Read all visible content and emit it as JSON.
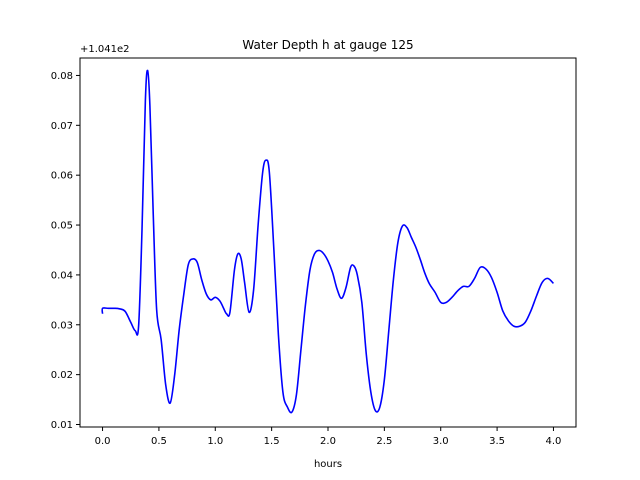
{
  "chart_data": {
    "type": "line",
    "title": "Water Depth h at gauge 125",
    "xlabel": "hours",
    "ylabel": "",
    "y_offset_label": "+1.041e2",
    "xlim": [
      -0.2,
      4.2
    ],
    "ylim": [
      0.0095,
      0.0835
    ],
    "x_ticks": [
      0.0,
      0.5,
      1.0,
      1.5,
      2.0,
      2.5,
      3.0,
      3.5,
      4.0
    ],
    "x_tick_labels": [
      "0.0",
      "0.5",
      "1.0",
      "1.5",
      "2.0",
      "2.5",
      "3.0",
      "3.5",
      "4.0"
    ],
    "y_ticks": [
      0.01,
      0.02,
      0.03,
      0.04,
      0.05,
      0.06,
      0.07,
      0.08
    ],
    "y_tick_labels": [
      "0.01",
      "0.02",
      "0.03",
      "0.04",
      "0.05",
      "0.06",
      "0.07",
      "0.08"
    ],
    "grid": false,
    "colors": {
      "series": "#0000ff"
    },
    "series": [
      {
        "x": [
          0.0,
          0.0,
          0.05,
          0.1,
          0.15,
          0.2,
          0.25,
          0.29,
          0.32,
          0.35,
          0.38,
          0.4,
          0.42,
          0.45,
          0.48,
          0.52,
          0.56,
          0.6,
          0.64,
          0.68,
          0.72,
          0.76,
          0.8,
          0.84,
          0.88,
          0.92,
          0.96,
          1.0,
          1.04,
          1.07,
          1.1,
          1.13,
          1.17,
          1.2,
          1.23,
          1.26,
          1.3,
          1.34,
          1.38,
          1.42,
          1.45,
          1.48,
          1.52,
          1.56,
          1.6,
          1.64,
          1.68,
          1.72,
          1.76,
          1.8,
          1.84,
          1.88,
          1.92,
          1.96,
          2.0,
          2.04,
          2.08,
          2.12,
          2.16,
          2.2,
          2.23,
          2.26,
          2.3,
          2.34,
          2.38,
          2.42,
          2.46,
          2.5,
          2.54,
          2.58,
          2.62,
          2.66,
          2.7,
          2.74,
          2.78,
          2.82,
          2.86,
          2.9,
          2.95,
          3.0,
          3.05,
          3.1,
          3.15,
          3.2,
          3.25,
          3.3,
          3.35,
          3.4,
          3.45,
          3.5,
          3.55,
          3.6,
          3.65,
          3.7,
          3.75,
          3.8,
          3.85,
          3.9,
          3.95,
          4.0
        ],
        "values": [
          0.0322,
          0.0333,
          0.0333,
          0.0333,
          0.0332,
          0.0327,
          0.0305,
          0.0288,
          0.0298,
          0.049,
          0.075,
          0.081,
          0.074,
          0.052,
          0.033,
          0.027,
          0.018,
          0.0143,
          0.02,
          0.029,
          0.036,
          0.042,
          0.0432,
          0.0425,
          0.039,
          0.0362,
          0.035,
          0.0355,
          0.0348,
          0.0335,
          0.0322,
          0.0325,
          0.041,
          0.0442,
          0.0432,
          0.0385,
          0.0325,
          0.037,
          0.05,
          0.0605,
          0.063,
          0.0605,
          0.045,
          0.028,
          0.0165,
          0.0135,
          0.0125,
          0.016,
          0.025,
          0.034,
          0.041,
          0.0442,
          0.0449,
          0.0443,
          0.0428,
          0.0405,
          0.0372,
          0.0353,
          0.0375,
          0.0415,
          0.0418,
          0.04,
          0.0345,
          0.024,
          0.0165,
          0.0128,
          0.0135,
          0.019,
          0.029,
          0.039,
          0.0465,
          0.0498,
          0.0495,
          0.0475,
          0.0455,
          0.043,
          0.0403,
          0.0382,
          0.0365,
          0.0345,
          0.0345,
          0.0355,
          0.0368,
          0.0377,
          0.0377,
          0.0393,
          0.0415,
          0.0412,
          0.0395,
          0.0365,
          0.0328,
          0.0308,
          0.0297,
          0.0297,
          0.0305,
          0.0328,
          0.0358,
          0.0385,
          0.0393,
          0.0383
        ]
      }
    ]
  }
}
